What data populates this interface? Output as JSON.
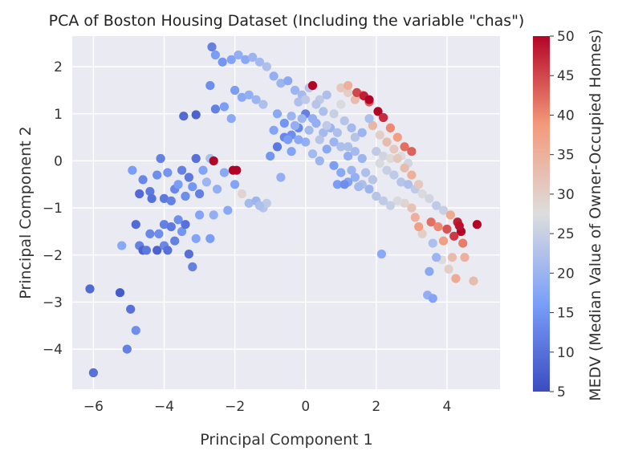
{
  "chart_data": {
    "type": "scatter",
    "title": "PCA of Boston Housing Dataset (Including the variable \"chas\")",
    "xlabel": "Principal Component 1",
    "ylabel": "Principal Component 2",
    "xlim": [
      -6.6,
      5.5
    ],
    "ylim": [
      -4.85,
      2.65
    ],
    "xticks": [
      -6,
      -4,
      -2,
      0,
      2,
      4
    ],
    "yticks": [
      -4,
      -3,
      -2,
      -1,
      0,
      1,
      2
    ],
    "xtick_labels": [
      "−6",
      "−4",
      "−2",
      "0",
      "2",
      "4"
    ],
    "ytick_labels": [
      "−4",
      "−3",
      "−2",
      "−1",
      "0",
      "1",
      "2"
    ],
    "grid": true,
    "colormap": "coolwarm",
    "colorbar": {
      "label": "MEDV (Median Value of Owner-Occupied Homes)",
      "range": [
        5,
        50
      ],
      "ticks": [
        5,
        10,
        15,
        20,
        25,
        30,
        35,
        40,
        45,
        50
      ],
      "tick_labels": [
        "5",
        "10",
        "15",
        "20",
        "25",
        "30",
        "35",
        "40",
        "45",
        "50"
      ]
    },
    "points": [
      [
        -6.1,
        -2.72,
        9
      ],
      [
        -5.25,
        -2.8,
        7
      ],
      [
        -4.95,
        -3.15,
        10
      ],
      [
        -5.05,
        -4.0,
        12
      ],
      [
        -4.8,
        -3.6,
        14
      ],
      [
        -6.0,
        -4.5,
        10
      ],
      [
        -5.2,
        -1.8,
        18
      ],
      [
        -4.8,
        -1.35,
        9
      ],
      [
        -4.7,
        -1.8,
        12
      ],
      [
        -4.6,
        -1.9,
        8
      ],
      [
        -4.5,
        -1.9,
        11
      ],
      [
        -4.2,
        -1.9,
        8
      ],
      [
        -4.15,
        -1.55,
        14
      ],
      [
        -4.0,
        -1.8,
        13
      ],
      [
        -3.9,
        -1.9,
        10
      ],
      [
        -3.7,
        -1.7,
        12
      ],
      [
        -3.5,
        -1.5,
        15
      ],
      [
        -3.2,
        -2.25,
        12
      ],
      [
        -3.3,
        -1.98,
        10
      ],
      [
        -3.1,
        -1.65,
        17
      ],
      [
        -4.4,
        -1.55,
        13
      ],
      [
        -4.0,
        -1.35,
        12
      ],
      [
        -3.8,
        -1.4,
        11
      ],
      [
        -3.6,
        -1.25,
        14
      ],
      [
        -3.4,
        -1.35,
        10
      ],
      [
        -4.9,
        -0.2,
        16
      ],
      [
        -4.6,
        -0.4,
        13
      ],
      [
        -4.4,
        -0.65,
        11
      ],
      [
        -4.2,
        -0.3,
        14
      ],
      [
        -4.1,
        0.05,
        12
      ],
      [
        -3.9,
        -0.25,
        15
      ],
      [
        -3.7,
        -0.6,
        13
      ],
      [
        -3.5,
        -0.2,
        12
      ],
      [
        -3.3,
        -0.35,
        11
      ],
      [
        -3.1,
        0.05,
        10
      ],
      [
        -2.9,
        -0.2,
        17
      ],
      [
        -2.7,
        0.05,
        22
      ],
      [
        -2.6,
        0.0,
        50
      ],
      [
        -2.05,
        -0.2,
        50
      ],
      [
        -1.95,
        -0.2,
        50
      ],
      [
        -4.0,
        -0.8,
        11
      ],
      [
        -3.8,
        -0.85,
        12
      ],
      [
        -3.6,
        -0.5,
        16
      ],
      [
        -3.4,
        -0.75,
        14
      ],
      [
        -3.2,
        -0.55,
        15
      ],
      [
        -3.0,
        -0.7,
        12
      ],
      [
        -2.8,
        -0.45,
        20
      ],
      [
        -2.5,
        -0.6,
        19
      ],
      [
        -2.3,
        -0.25,
        18
      ],
      [
        -2.0,
        -0.5,
        17
      ],
      [
        -1.8,
        -0.7,
        29
      ],
      [
        -1.6,
        -0.9,
        21
      ],
      [
        -1.4,
        -0.85,
        20
      ],
      [
        -1.2,
        -1.0,
        23
      ],
      [
        -3.0,
        -1.15,
        17
      ],
      [
        -2.6,
        -1.15,
        19
      ],
      [
        -2.2,
        -1.05,
        18
      ],
      [
        -2.7,
        -1.65,
        16
      ],
      [
        -4.7,
        -0.7,
        9
      ],
      [
        -4.35,
        -0.8,
        10
      ],
      [
        -3.45,
        0.95,
        9
      ],
      [
        -3.1,
        0.98,
        8
      ],
      [
        -2.7,
        1.6,
        14
      ],
      [
        -2.55,
        1.1,
        12
      ],
      [
        -2.3,
        1.15,
        16
      ],
      [
        -2.1,
        0.9,
        18
      ],
      [
        -2.65,
        2.42,
        12
      ],
      [
        -2.55,
        2.25,
        16
      ],
      [
        -2.35,
        2.1,
        15
      ],
      [
        -2.1,
        2.15,
        17
      ],
      [
        -1.9,
        2.25,
        19
      ],
      [
        -1.7,
        2.15,
        18
      ],
      [
        -1.5,
        2.2,
        20
      ],
      [
        -1.3,
        2.1,
        21
      ],
      [
        -1.1,
        2.0,
        22
      ],
      [
        -0.9,
        1.8,
        19
      ],
      [
        -0.7,
        1.65,
        20
      ],
      [
        -0.5,
        1.7,
        18
      ],
      [
        -0.3,
        1.5,
        20
      ],
      [
        -0.1,
        1.4,
        21
      ],
      [
        0.1,
        1.55,
        23
      ],
      [
        0.2,
        1.6,
        50
      ],
      [
        0.4,
        1.3,
        24
      ],
      [
        0.6,
        1.4,
        22
      ],
      [
        -2.0,
        1.5,
        16
      ],
      [
        -1.8,
        1.35,
        18
      ],
      [
        -1.6,
        1.4,
        19
      ],
      [
        -1.4,
        1.3,
        20
      ],
      [
        -1.2,
        1.2,
        22
      ],
      [
        -0.8,
        1.0,
        18
      ],
      [
        -0.6,
        0.8,
        15
      ],
      [
        -0.4,
        0.55,
        14
      ],
      [
        -0.2,
        0.7,
        13
      ],
      [
        0.0,
        1.0,
        12
      ],
      [
        0.2,
        0.9,
        19
      ],
      [
        -0.8,
        0.3,
        11
      ],
      [
        -0.6,
        0.5,
        13
      ],
      [
        -0.4,
        0.95,
        20
      ],
      [
        -0.2,
        1.25,
        22
      ],
      [
        0.0,
        1.3,
        24
      ],
      [
        0.3,
        1.2,
        23
      ],
      [
        0.5,
        1.05,
        22
      ],
      [
        0.3,
        0.8,
        19
      ],
      [
        0.5,
        0.6,
        21
      ],
      [
        0.7,
        0.7,
        20
      ],
      [
        0.9,
        0.6,
        22
      ],
      [
        1.1,
        0.85,
        23
      ],
      [
        1.3,
        0.7,
        21
      ],
      [
        0.6,
        0.25,
        18
      ],
      [
        0.8,
        0.4,
        20
      ],
      [
        1.0,
        0.3,
        22
      ],
      [
        1.2,
        0.1,
        19
      ],
      [
        1.4,
        0.2,
        21
      ],
      [
        1.6,
        0.05,
        20
      ],
      [
        0.8,
        1.0,
        25
      ],
      [
        1.0,
        1.2,
        27
      ],
      [
        1.2,
        1.45,
        30
      ],
      [
        1.4,
        1.3,
        33
      ],
      [
        1.6,
        1.4,
        37
      ],
      [
        1.8,
        1.25,
        43
      ],
      [
        1.0,
        1.55,
        31
      ],
      [
        1.2,
        1.6,
        35
      ],
      [
        1.45,
        1.45,
        45
      ],
      [
        1.65,
        1.38,
        48
      ],
      [
        1.8,
        1.3,
        50
      ],
      [
        2.05,
        1.05,
        50
      ],
      [
        2.2,
        0.92,
        47
      ],
      [
        2.4,
        0.7,
        40
      ],
      [
        2.6,
        0.5,
        38
      ],
      [
        2.8,
        0.3,
        42
      ],
      [
        3.0,
        0.2,
        43
      ],
      [
        1.9,
        0.75,
        34
      ],
      [
        2.1,
        0.55,
        30
      ],
      [
        2.3,
        0.4,
        33
      ],
      [
        2.5,
        0.25,
        31
      ],
      [
        2.7,
        0.1,
        28
      ],
      [
        2.9,
        -0.05,
        26
      ],
      [
        2.1,
        -0.05,
        27
      ],
      [
        2.3,
        -0.2,
        25
      ],
      [
        2.5,
        -0.3,
        24
      ],
      [
        2.7,
        -0.45,
        23
      ],
      [
        2.9,
        -0.5,
        22
      ],
      [
        3.1,
        -0.6,
        24
      ],
      [
        3.3,
        -0.7,
        27
      ],
      [
        3.5,
        -0.8,
        26
      ],
      [
        3.7,
        -0.95,
        24
      ],
      [
        3.9,
        -1.05,
        25
      ],
      [
        4.1,
        -1.15,
        36
      ],
      [
        4.3,
        -1.3,
        48
      ],
      [
        4.4,
        -1.5,
        50
      ],
      [
        4.2,
        -1.6,
        46
      ],
      [
        4.45,
        -1.75,
        41
      ],
      [
        4.85,
        -1.35,
        50
      ],
      [
        4.35,
        -1.38,
        49
      ],
      [
        4.15,
        -2.05,
        33
      ],
      [
        4.5,
        -2.05,
        35
      ],
      [
        4.25,
        -2.5,
        36
      ],
      [
        4.75,
        -2.55,
        33
      ],
      [
        4.05,
        -2.3,
        30
      ],
      [
        3.85,
        -2.1,
        28
      ],
      [
        3.6,
        -1.75,
        22
      ],
      [
        3.7,
        -2.05,
        20
      ],
      [
        3.5,
        -2.35,
        18
      ],
      [
        3.45,
        -2.85,
        19
      ],
      [
        3.6,
        -2.92,
        17
      ],
      [
        3.3,
        -1.55,
        30
      ],
      [
        3.1,
        -1.2,
        35
      ],
      [
        3.2,
        -1.4,
        38
      ],
      [
        3.55,
        -1.3,
        42
      ],
      [
        3.75,
        -1.4,
        40
      ],
      [
        3.9,
        -1.7,
        38
      ],
      [
        4.0,
        -1.45,
        44
      ],
      [
        3.0,
        -1.0,
        32
      ],
      [
        2.8,
        -0.9,
        29
      ],
      [
        2.6,
        -0.85,
        27
      ],
      [
        2.4,
        -0.95,
        25
      ],
      [
        2.2,
        -0.85,
        24
      ],
      [
        2.0,
        -0.75,
        23
      ],
      [
        1.8,
        -0.6,
        20
      ],
      [
        1.6,
        -0.5,
        22
      ],
      [
        1.4,
        -0.35,
        19
      ],
      [
        1.2,
        -0.45,
        17
      ],
      [
        1.0,
        -0.25,
        18
      ],
      [
        0.8,
        -0.1,
        16
      ],
      [
        0.4,
        0.0,
        20
      ],
      [
        0.2,
        0.15,
        21
      ],
      [
        0.0,
        0.4,
        19
      ],
      [
        -0.2,
        0.45,
        18
      ],
      [
        -0.4,
        0.2,
        17
      ],
      [
        0.9,
        -0.5,
        16
      ],
      [
        1.1,
        -0.5,
        14
      ],
      [
        1.3,
        -0.2,
        20
      ],
      [
        1.5,
        -0.55,
        21
      ],
      [
        1.7,
        -0.25,
        22
      ],
      [
        1.9,
        -0.4,
        23
      ],
      [
        2.0,
        0.2,
        24
      ],
      [
        2.2,
        0.1,
        26
      ],
      [
        2.4,
        0.05,
        28
      ],
      [
        2.6,
        0.05,
        31
      ],
      [
        2.8,
        -0.15,
        33
      ],
      [
        3.0,
        -0.3,
        35
      ],
      [
        3.2,
        -0.5,
        31
      ],
      [
        2.15,
        -1.98,
        18
      ],
      [
        1.2,
        0.3,
        22
      ],
      [
        1.4,
        0.5,
        23
      ],
      [
        1.6,
        0.6,
        20
      ],
      [
        1.8,
        0.9,
        22
      ],
      [
        0.6,
        0.75,
        24
      ],
      [
        0.4,
        0.45,
        23
      ],
      [
        0.1,
        0.65,
        21
      ],
      [
        -0.1,
        0.9,
        20
      ],
      [
        -0.3,
        0.75,
        19
      ],
      [
        -0.5,
        0.45,
        16
      ],
      [
        -0.7,
        -0.35,
        19
      ],
      [
        -0.9,
        0.65,
        17
      ],
      [
        -1.0,
        0.1,
        15
      ],
      [
        -1.1,
        -0.9,
        24
      ],
      [
        -1.3,
        -0.95,
        22
      ]
    ]
  }
}
